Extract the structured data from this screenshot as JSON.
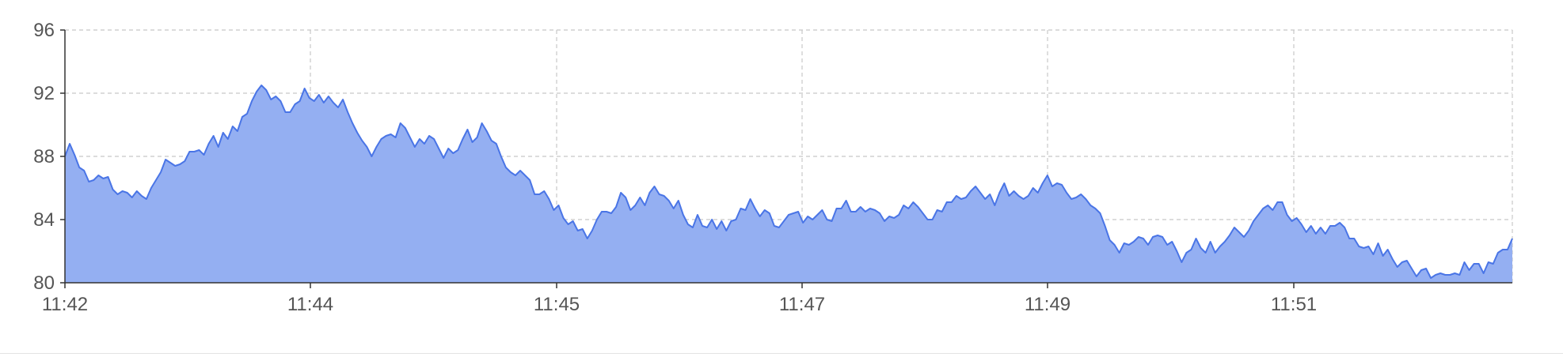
{
  "chart_data": {
    "type": "area",
    "title": "",
    "xlabel": "",
    "ylabel": "",
    "ylim": [
      80,
      96
    ],
    "yticks": [
      "80",
      "84",
      "88",
      "92",
      "96"
    ],
    "xticks": [
      "11:42",
      "11:44",
      "11:45",
      "11:47",
      "11:49",
      "11:51"
    ],
    "grid": true,
    "series": [
      {
        "color": "#4a75e6",
        "fill": "#94aff2",
        "x_start": "11:42",
        "x_end": "11:52:48",
        "values": [
          88.0,
          88.8,
          88.1,
          87.3,
          87.1,
          86.4,
          86.5,
          86.8,
          86.6,
          86.7,
          85.9,
          85.6,
          85.8,
          85.7,
          85.4,
          85.8,
          85.5,
          85.3,
          86.0,
          86.5,
          87.0,
          87.8,
          87.6,
          87.4,
          87.5,
          87.7,
          88.3,
          88.3,
          88.4,
          88.1,
          88.8,
          89.3,
          88.6,
          89.5,
          89.1,
          89.9,
          89.6,
          90.5,
          90.7,
          91.5,
          92.1,
          92.5,
          92.2,
          91.6,
          91.8,
          91.5,
          90.8,
          90.8,
          91.3,
          91.5,
          92.3,
          91.7,
          91.5,
          91.9,
          91.4,
          91.8,
          91.4,
          91.1,
          91.6,
          90.8,
          90.1,
          89.5,
          89.0,
          88.6,
          88.0,
          88.6,
          89.1,
          89.3,
          89.4,
          89.2,
          90.1,
          89.8,
          89.2,
          88.6,
          89.1,
          88.8,
          89.3,
          89.1,
          88.5,
          87.9,
          88.5,
          88.2,
          88.4,
          89.1,
          89.7,
          88.9,
          89.2,
          90.1,
          89.6,
          89.0,
          88.8,
          88.0,
          87.3,
          87.0,
          86.8,
          87.1,
          86.8,
          86.5,
          85.6,
          85.6,
          85.8,
          85.3,
          84.6,
          84.9,
          84.1,
          83.7,
          83.9,
          83.3,
          83.4,
          82.8,
          83.3,
          84.0,
          84.5,
          84.5,
          84.4,
          84.8,
          85.7,
          85.4,
          84.6,
          84.9,
          85.4,
          84.9,
          85.7,
          86.1,
          85.6,
          85.5,
          85.2,
          84.7,
          85.2,
          84.3,
          83.7,
          83.5,
          84.3,
          83.6,
          83.5,
          84.0,
          83.4,
          83.9,
          83.3,
          83.9,
          84.0,
          84.7,
          84.6,
          85.3,
          84.7,
          84.2,
          84.6,
          84.4,
          83.6,
          83.5,
          83.9,
          84.3,
          84.4,
          84.5,
          83.8,
          84.2,
          84.0,
          84.3,
          84.6,
          84.0,
          83.9,
          84.7,
          84.7,
          85.2,
          84.5,
          84.5,
          84.8,
          84.5,
          84.7,
          84.6,
          84.4,
          83.9,
          84.2,
          84.1,
          84.3,
          84.9,
          84.7,
          85.1,
          84.8,
          84.4,
          84.0,
          84.0,
          84.6,
          84.5,
          85.1,
          85.1,
          85.5,
          85.3,
          85.4,
          85.8,
          86.1,
          85.7,
          85.3,
          85.6,
          84.9,
          85.7,
          86.3,
          85.5,
          85.8,
          85.5,
          85.3,
          85.5,
          86.0,
          85.7,
          86.3,
          86.8,
          86.1,
          86.3,
          86.2,
          85.7,
          85.3,
          85.4,
          85.6,
          85.3,
          84.9,
          84.7,
          84.4,
          83.6,
          82.7,
          82.4,
          81.9,
          82.5,
          82.4,
          82.6,
          82.9,
          82.8,
          82.4,
          82.9,
          83.0,
          82.9,
          82.4,
          82.6,
          82.0,
          81.3,
          81.9,
          82.1,
          82.8,
          82.2,
          81.9,
          82.6,
          81.9,
          82.3,
          82.6,
          83.0,
          83.5,
          83.2,
          82.9,
          83.3,
          83.9,
          84.3,
          84.7,
          84.9,
          84.6,
          85.1,
          85.1,
          84.3,
          83.9,
          84.1,
          83.7,
          83.2,
          83.6,
          83.1,
          83.5,
          83.1,
          83.6,
          83.6,
          83.8,
          83.5,
          82.8,
          82.8,
          82.3,
          82.2,
          82.3,
          81.8,
          82.5,
          81.7,
          82.1,
          81.5,
          81.0,
          81.3,
          81.4,
          80.9,
          80.4,
          80.8,
          80.9,
          80.3,
          80.5,
          80.6,
          80.5,
          80.5,
          80.6,
          80.5,
          81.3,
          80.8,
          81.2,
          81.2,
          80.6,
          81.3,
          81.2,
          81.9,
          82.1,
          82.1,
          82.8
        ]
      }
    ]
  }
}
